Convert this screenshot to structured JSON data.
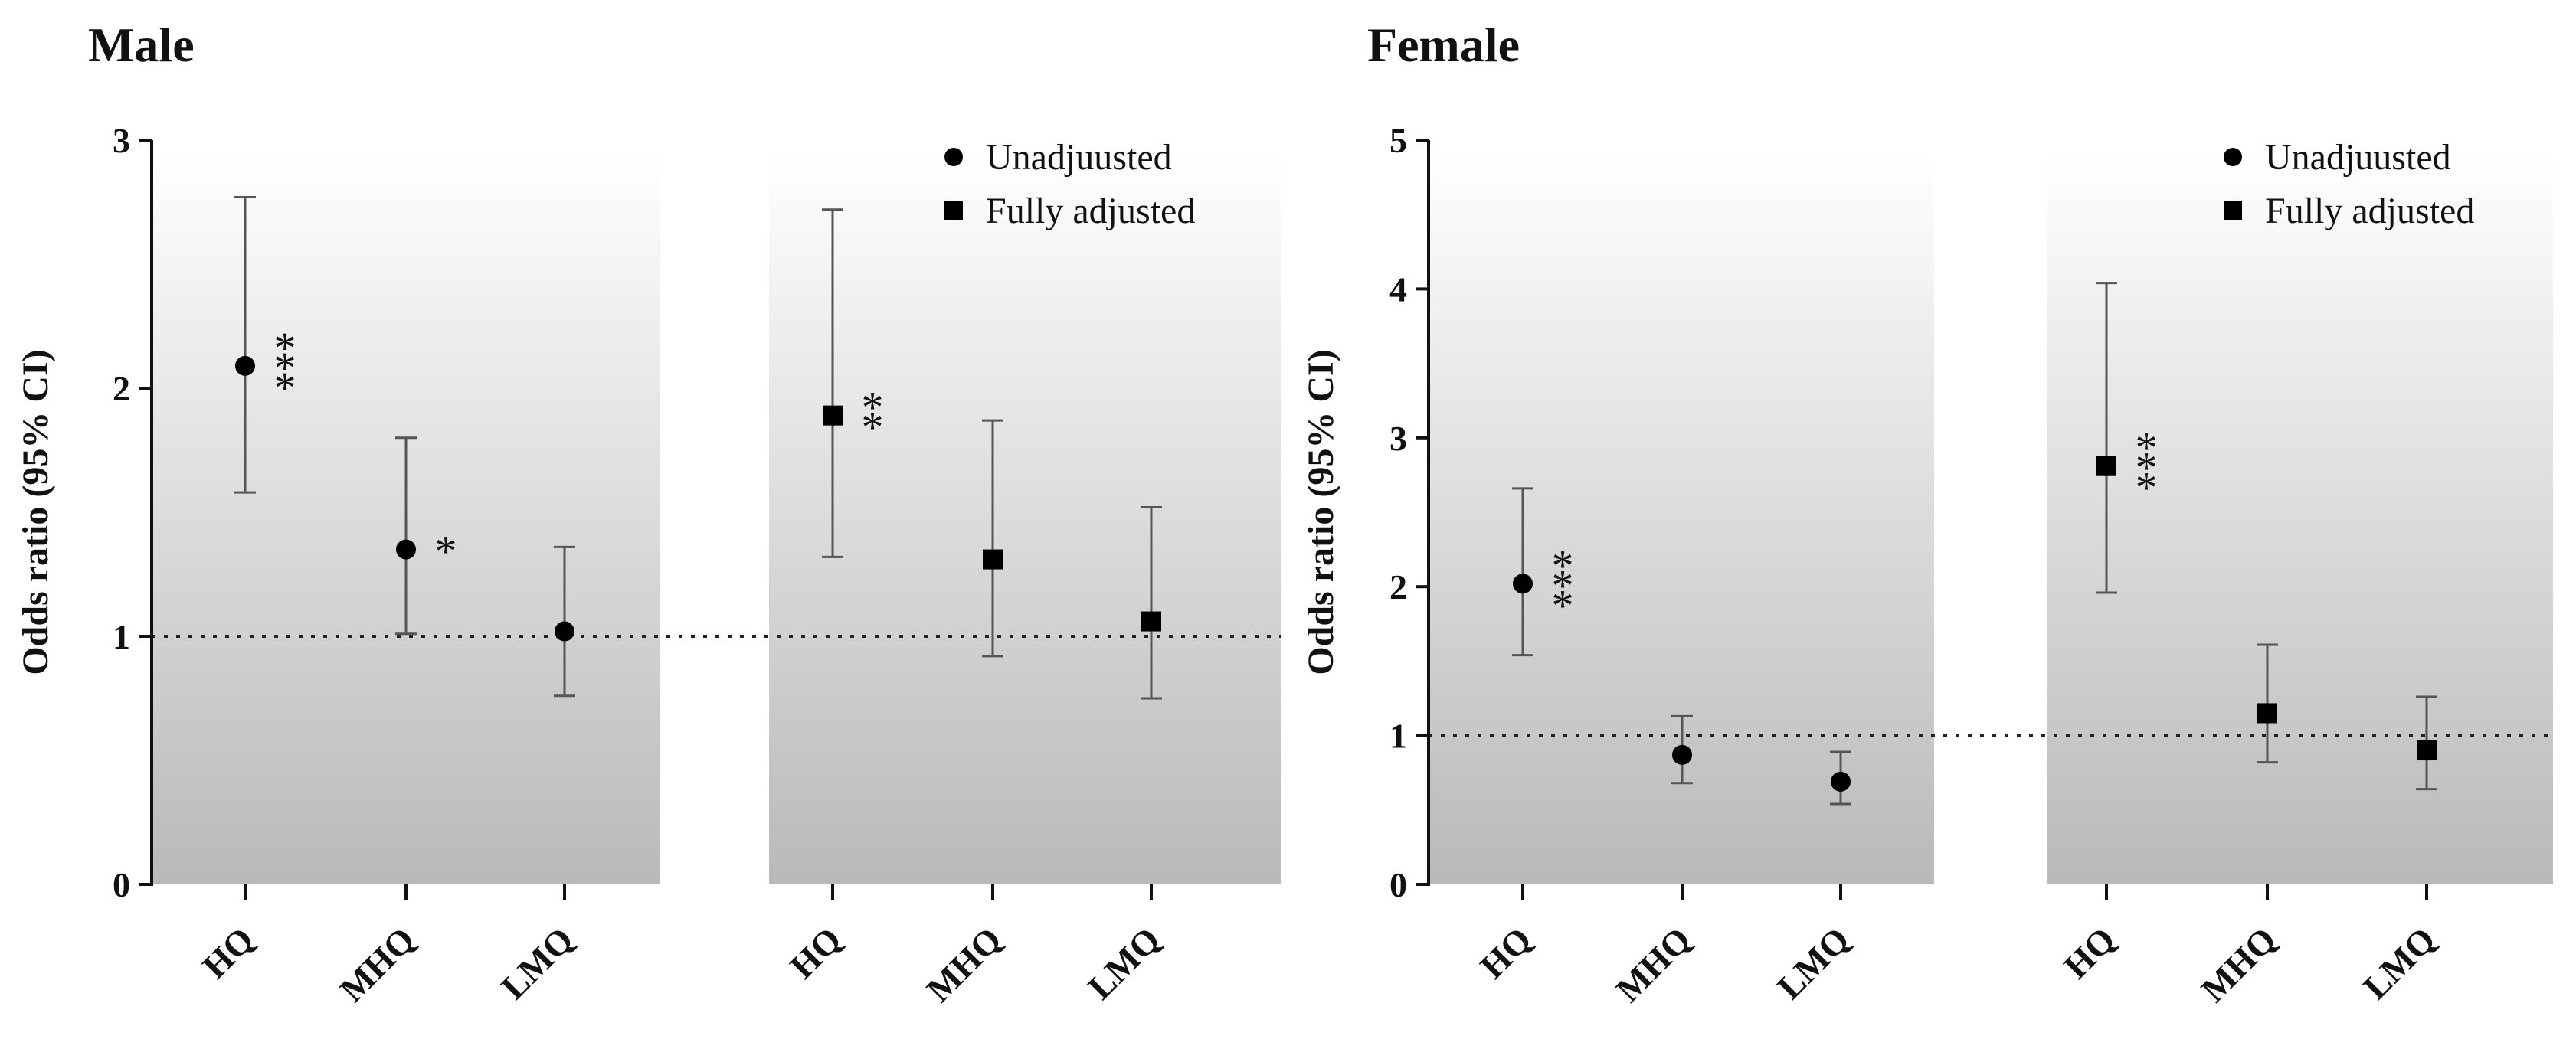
{
  "chart_data": [
    {
      "type": "scatter",
      "title": "Male",
      "ylabel": "Odds ratio (95% CI)",
      "ylim": [
        0,
        3
      ],
      "yticks": [
        0,
        1,
        2,
        3
      ],
      "reference_line": 1,
      "legend": [
        {
          "label": "Unadjuusted",
          "marker": "circle"
        },
        {
          "label": "Fully adjusted",
          "marker": "square"
        }
      ],
      "groups": [
        {
          "name": "Unadjusted",
          "marker": "circle",
          "points": [
            {
              "category": "HQ",
              "or": 2.09,
              "lo": 1.58,
              "hi": 2.77,
              "sig": "***"
            },
            {
              "category": "MHQ",
              "or": 1.35,
              "lo": 1.01,
              "hi": 1.8,
              "sig": "*"
            },
            {
              "category": "LMQ",
              "or": 1.02,
              "lo": 0.76,
              "hi": 1.36,
              "sig": ""
            }
          ]
        },
        {
          "name": "Fully adjusted",
          "marker": "square",
          "points": [
            {
              "category": "HQ",
              "or": 1.89,
              "lo": 1.32,
              "hi": 2.72,
              "sig": "**"
            },
            {
              "category": "MHQ",
              "or": 1.31,
              "lo": 0.92,
              "hi": 1.87,
              "sig": ""
            },
            {
              "category": "LMQ",
              "or": 1.06,
              "lo": 0.75,
              "hi": 1.52,
              "sig": ""
            }
          ]
        }
      ]
    },
    {
      "type": "scatter",
      "title": "Female",
      "ylabel": "Odds ratio (95% CI)",
      "ylim": [
        0,
        5
      ],
      "yticks": [
        0,
        1,
        2,
        3,
        4,
        5
      ],
      "reference_line": 1,
      "legend": [
        {
          "label": "Unadjuusted",
          "marker": "circle"
        },
        {
          "label": "Fully adjusted",
          "marker": "square"
        }
      ],
      "groups": [
        {
          "name": "Unadjusted",
          "marker": "circle",
          "points": [
            {
              "category": "HQ",
              "or": 2.02,
              "lo": 1.54,
              "hi": 2.66,
              "sig": "***"
            },
            {
              "category": "MHQ",
              "or": 0.87,
              "lo": 0.68,
              "hi": 1.13,
              "sig": ""
            },
            {
              "category": "LMQ",
              "or": 0.69,
              "lo": 0.54,
              "hi": 0.89,
              "sig": ""
            }
          ]
        },
        {
          "name": "Fully adjusted",
          "marker": "square",
          "points": [
            {
              "category": "HQ",
              "or": 2.81,
              "lo": 1.96,
              "hi": 4.04,
              "sig": "***"
            },
            {
              "category": "MHQ",
              "or": 1.15,
              "lo": 0.82,
              "hi": 1.61,
              "sig": ""
            },
            {
              "category": "LMQ",
              "or": 0.9,
              "lo": 0.64,
              "hi": 1.26,
              "sig": ""
            }
          ]
        }
      ]
    }
  ]
}
